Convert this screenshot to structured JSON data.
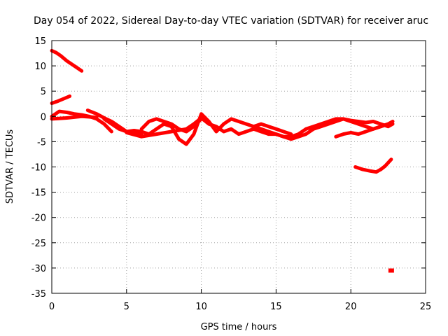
{
  "chart_data": {
    "type": "scatter",
    "title": "Day 054 of 2022, Sidereal Day-to-day VTEC variation (SDTVAR) for receiver aruc",
    "xlabel": "GPS time / hours",
    "ylabel": "SDTVAR / TECUs",
    "xlim": [
      0,
      25
    ],
    "ylim": [
      -35,
      15
    ],
    "x_ticks": [
      0,
      5,
      10,
      15,
      20,
      25
    ],
    "y_ticks": [
      -35,
      -30,
      -25,
      -20,
      -15,
      -10,
      -5,
      0,
      5,
      10,
      15
    ],
    "grid": true,
    "color": "#ff0000",
    "series": [
      {
        "name": "track-1",
        "points": [
          [
            0,
            13
          ],
          [
            0.3,
            12.6
          ],
          [
            0.6,
            12
          ],
          [
            1,
            11
          ],
          [
            1.5,
            10
          ],
          [
            2,
            9
          ]
        ]
      },
      {
        "name": "track-2",
        "points": [
          [
            0,
            2.6
          ],
          [
            0.4,
            3
          ],
          [
            0.8,
            3.5
          ],
          [
            1.2,
            4
          ]
        ]
      },
      {
        "name": "track-3",
        "points": [
          [
            0,
            0
          ],
          [
            0.5,
            1
          ],
          [
            1,
            0.8
          ],
          [
            1.5,
            0.5
          ],
          [
            2,
            0.3
          ],
          [
            2.5,
            0
          ],
          [
            3,
            -0.5
          ],
          [
            3.5,
            -1.5
          ],
          [
            4,
            -3
          ]
        ]
      },
      {
        "name": "track-4",
        "points": [
          [
            0,
            -0.5
          ],
          [
            1,
            -0.3
          ],
          [
            2,
            0
          ],
          [
            3,
            -0.2
          ]
        ]
      },
      {
        "name": "track-5",
        "points": [
          [
            2.4,
            1.2
          ],
          [
            3,
            0.5
          ],
          [
            3.5,
            -0.3
          ],
          [
            4,
            -1
          ],
          [
            4.5,
            -2
          ],
          [
            5,
            -3
          ],
          [
            5.5,
            -3.3
          ],
          [
            6,
            -3.5
          ]
        ]
      },
      {
        "name": "track-6",
        "points": [
          [
            3.5,
            -0.5
          ],
          [
            4,
            -1.5
          ],
          [
            4.5,
            -2.5
          ],
          [
            5,
            -3
          ],
          [
            5.5,
            -2.8
          ],
          [
            6,
            -3
          ],
          [
            6.5,
            -3.5
          ],
          [
            7,
            -2.5
          ],
          [
            7.5,
            -1.5
          ],
          [
            8,
            -2
          ],
          [
            8.5,
            -4.5
          ],
          [
            9,
            -5.5
          ],
          [
            9.5,
            -3.5
          ],
          [
            10,
            0.5
          ],
          [
            10.5,
            -1
          ],
          [
            11,
            -3
          ],
          [
            11.5,
            -1.5
          ],
          [
            12,
            -0.5
          ],
          [
            12.5,
            -1
          ],
          [
            13,
            -1.5
          ],
          [
            13.5,
            -2
          ],
          [
            14,
            -1.5
          ],
          [
            14.5,
            -2
          ],
          [
            15,
            -2.5
          ],
          [
            15.5,
            -3
          ],
          [
            16,
            -3.5
          ]
        ]
      },
      {
        "name": "track-7",
        "points": [
          [
            6,
            -2.5
          ],
          [
            6.5,
            -1
          ],
          [
            7,
            -0.5
          ],
          [
            7.5,
            -1
          ],
          [
            8,
            -1.5
          ],
          [
            8.5,
            -2.5
          ],
          [
            9,
            -3
          ],
          [
            9.5,
            -2
          ],
          [
            10,
            -0.5
          ]
        ]
      },
      {
        "name": "track-8",
        "points": [
          [
            5,
            -3.2
          ],
          [
            6,
            -4
          ],
          [
            7,
            -3.5
          ],
          [
            8,
            -3
          ],
          [
            9,
            -2.5
          ],
          [
            9.5,
            -1.5
          ],
          [
            10,
            -0.3
          ],
          [
            10.5,
            -1.5
          ],
          [
            11,
            -2
          ],
          [
            11.5,
            -3
          ],
          [
            12,
            -2.5
          ],
          [
            12.5,
            -3.5
          ],
          [
            13,
            -3
          ],
          [
            13.5,
            -2.5
          ],
          [
            14,
            -3
          ],
          [
            14.5,
            -3.5
          ],
          [
            15,
            -3.5
          ],
          [
            15.5,
            -4
          ],
          [
            16,
            -4
          ],
          [
            16.5,
            -3.5
          ],
          [
            17,
            -2.5
          ],
          [
            17.5,
            -2
          ],
          [
            18,
            -1.5
          ],
          [
            18.5,
            -1
          ],
          [
            19,
            -0.5
          ],
          [
            19.5,
            -0.5
          ],
          [
            20,
            -0.8
          ],
          [
            20.5,
            -1
          ],
          [
            21,
            -1.2
          ],
          [
            21.5,
            -1
          ],
          [
            22,
            -1.5
          ],
          [
            22.5,
            -2
          ],
          [
            22.8,
            -1.5
          ]
        ]
      },
      {
        "name": "track-9",
        "points": [
          [
            13.5,
            -2
          ],
          [
            14,
            -2.5
          ],
          [
            14.5,
            -3
          ],
          [
            15,
            -3.5
          ],
          [
            15.5,
            -4
          ],
          [
            16,
            -4.5
          ],
          [
            16.5,
            -4
          ],
          [
            17,
            -3.5
          ],
          [
            17.5,
            -2.5
          ],
          [
            18,
            -2
          ],
          [
            18.5,
            -1.5
          ],
          [
            19,
            -1
          ],
          [
            19.5,
            -0.5
          ],
          [
            20,
            -1
          ],
          [
            20.5,
            -1.5
          ],
          [
            21,
            -2
          ],
          [
            21.5,
            -2.5
          ],
          [
            22,
            -2
          ],
          [
            22.5,
            -1.5
          ],
          [
            22.8,
            -1
          ]
        ]
      },
      {
        "name": "track-10",
        "points": [
          [
            19,
            -4
          ],
          [
            19.5,
            -3.5
          ],
          [
            20,
            -3.2
          ],
          [
            20.5,
            -3.5
          ],
          [
            21,
            -3
          ],
          [
            21.5,
            -2.5
          ],
          [
            22,
            -2
          ],
          [
            22.5,
            -1.5
          ]
        ]
      },
      {
        "name": "track-11",
        "points": [
          [
            20.3,
            -10
          ],
          [
            20.8,
            -10.5
          ],
          [
            21.3,
            -10.8
          ],
          [
            21.7,
            -11
          ],
          [
            22,
            -10.5
          ],
          [
            22.3,
            -9.8
          ],
          [
            22.7,
            -8.5
          ]
        ]
      }
    ],
    "points": [
      {
        "name": "isolated-point",
        "x": 22.7,
        "y": -30.5
      }
    ]
  }
}
